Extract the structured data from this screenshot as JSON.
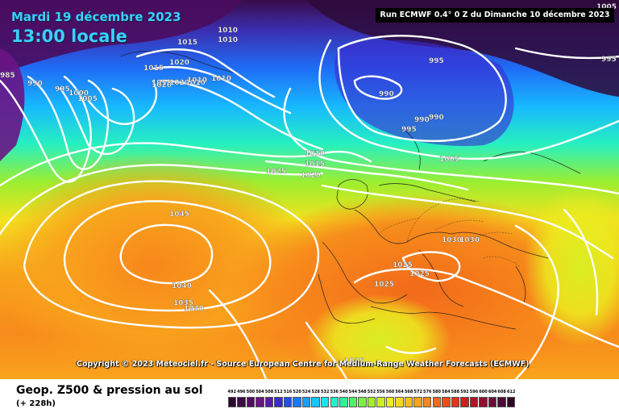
{
  "header": {
    "date": "Mardi 19 décembre 2023",
    "time": "13:00 locale",
    "run": "Run ECMWF 0.4° 0 Z du Dimanche 10 décembre 2023"
  },
  "copyright": "Copyright © 2023 Meteociel.fr - Source European Centre for Medium-Range Weather Forecasts (ECMWF)",
  "footer": {
    "title": "Geop. Z500 & pression au sol",
    "subtitle": "(+ 228h)"
  },
  "scale": {
    "labels": [
      "492",
      "496",
      "500",
      "504",
      "508",
      "512",
      "516",
      "520",
      "524",
      "528",
      "532",
      "536",
      "540",
      "544",
      "548",
      "552",
      "556",
      "560",
      "564",
      "568",
      "572",
      "576",
      "580",
      "584",
      "588",
      "592",
      "596",
      "600",
      "604",
      "608",
      "612"
    ],
    "colors": [
      "#2a0a2c",
      "#3b0a45",
      "#520c62",
      "#6a1485",
      "#5a1aa8",
      "#3a2ad0",
      "#1f4ff0",
      "#1a78ff",
      "#12a2ff",
      "#11c7ff",
      "#19e2f2",
      "#22f2c8",
      "#2ef29a",
      "#52f06a",
      "#7cee45",
      "#a6ee2c",
      "#cdee22",
      "#ecec1f",
      "#f8d81e",
      "#fbbe1d",
      "#f9a21c",
      "#f7861b",
      "#f26a1a",
      "#ec4f1a",
      "#e1341a",
      "#cc1f1d",
      "#b21524",
      "#8f1030",
      "#6d0c3a",
      "#4e0a3a",
      "#2c0624"
    ]
  },
  "isobars": [
    {
      "label": "985"
    },
    {
      "label": "990"
    },
    {
      "label": "995"
    },
    {
      "label": "1000"
    },
    {
      "label": "1005"
    },
    {
      "label": "1015"
    },
    {
      "label": "1010"
    },
    {
      "label": "1010"
    },
    {
      "label": "1015"
    },
    {
      "label": "1020"
    },
    {
      "label": "1015"
    },
    {
      "label": "1020"
    },
    {
      "label": "1020"
    },
    {
      "label": "1010"
    },
    {
      "label": "1010"
    },
    {
      "label": "1010"
    },
    {
      "label": "995"
    },
    {
      "label": "990"
    },
    {
      "label": "990"
    },
    {
      "label": "990"
    },
    {
      "label": "995"
    },
    {
      "label": "1005"
    },
    {
      "label": "995"
    },
    {
      "label": "1005"
    },
    {
      "label": "1010"
    },
    {
      "label": "1015"
    },
    {
      "label": "1020"
    },
    {
      "label": "1025"
    },
    {
      "label": "1045"
    },
    {
      "label": "1040"
    },
    {
      "label": "1035"
    },
    {
      "label": "1030"
    },
    {
      "label": "1030"
    },
    {
      "label": "1030"
    },
    {
      "label": "1025"
    },
    {
      "label": "1025"
    },
    {
      "label": "1025"
    },
    {
      "label": "1025"
    }
  ]
}
